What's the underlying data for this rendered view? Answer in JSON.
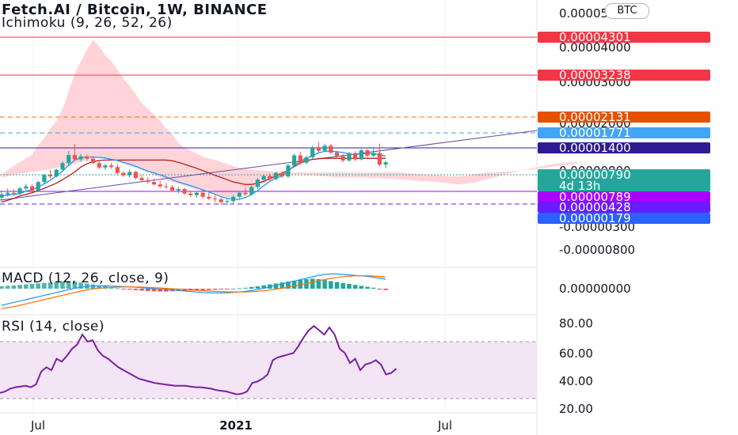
{
  "header": {
    "title": "Fetch.AI / Bitcoin, 1W, BINANCE",
    "indicator": "Ichimoku (9, 26, 52, 26)",
    "currency_badge": "BTC"
  },
  "colors": {
    "up": "#26a69a",
    "down": "#ef5350",
    "cloud": "#ffcdd2",
    "conversion": "#2196f3",
    "base": "#b71c1c",
    "rsi": "#7b1fa2",
    "rsi_band": "#f3e5f5",
    "macd_line": "#2196f3",
    "signal_line": "#ff6d00"
  },
  "chart_data": [
    {
      "type": "candlestick",
      "title": "Fetch.AI / Bitcoin, 1W, BINANCE",
      "timeframe": "1W",
      "y_scale": "log",
      "x_ticks": [
        "Jul",
        "2021",
        "Jul"
      ],
      "y_ticks": [
        "0.00005000",
        "0.00004000",
        "0.00003000",
        "0.00002000",
        "0.00000800",
        "0.00000300",
        "-0.00000300",
        "-0.00000800"
      ],
      "price_labels": [
        {
          "value": "0.00004301",
          "color": "#f23645",
          "style": "solid"
        },
        {
          "value": "0.00003238",
          "color": "#f23645",
          "style": "solid"
        },
        {
          "value": "0.00002131",
          "color": "#e65100",
          "style": "dashed"
        },
        {
          "value": "0.00001771",
          "color": "#42a5f5",
          "style": "dashed"
        },
        {
          "value": "0.00001400",
          "color": "#311b92",
          "style": "solid"
        },
        {
          "value": "0.00000790",
          "color": "#26a69a",
          "style": "dotted",
          "countdown": "4d 13h"
        },
        {
          "value": "0.00000789",
          "color": "#aa00ff",
          "style": "solid"
        },
        {
          "value": "0.00000428",
          "color": "#6a1bff",
          "style": "dashed"
        },
        {
          "value": "0.00000179",
          "color": "#2962ff",
          "style": "solid"
        }
      ],
      "candles": [
        {
          "o": 5.0,
          "h": 5.9,
          "l": 4.6,
          "c": 5.4
        },
        {
          "o": 5.4,
          "h": 6.2,
          "l": 5.1,
          "c": 5.6
        },
        {
          "o": 5.6,
          "h": 6.1,
          "l": 5.2,
          "c": 5.5
        },
        {
          "o": 5.5,
          "h": 6.4,
          "l": 5.3,
          "c": 6.2
        },
        {
          "o": 6.2,
          "h": 6.9,
          "l": 5.9,
          "c": 6.5
        },
        {
          "o": 6.5,
          "h": 6.8,
          "l": 5.6,
          "c": 5.9
        },
        {
          "o": 5.9,
          "h": 7.4,
          "l": 5.7,
          "c": 7.2
        },
        {
          "o": 7.2,
          "h": 8.7,
          "l": 6.9,
          "c": 8.5
        },
        {
          "o": 8.5,
          "h": 9.5,
          "l": 7.8,
          "c": 8.2
        },
        {
          "o": 8.2,
          "h": 9.8,
          "l": 8.0,
          "c": 9.6
        },
        {
          "o": 9.6,
          "h": 11.6,
          "l": 9.2,
          "c": 11.2
        },
        {
          "o": 11.2,
          "h": 14.8,
          "l": 10.5,
          "c": 13.5
        },
        {
          "o": 13.5,
          "h": 17.5,
          "l": 11.8,
          "c": 12.2
        },
        {
          "o": 12.2,
          "h": 13.9,
          "l": 11.6,
          "c": 13.1
        },
        {
          "o": 13.1,
          "h": 13.6,
          "l": 11.7,
          "c": 12.4
        },
        {
          "o": 12.4,
          "h": 13.1,
          "l": 10.9,
          "c": 11.2
        },
        {
          "o": 11.2,
          "h": 11.8,
          "l": 9.7,
          "c": 10.1
        },
        {
          "o": 10.1,
          "h": 11.0,
          "l": 9.5,
          "c": 10.6
        },
        {
          "o": 10.6,
          "h": 11.3,
          "l": 9.8,
          "c": 10.2
        },
        {
          "o": 10.2,
          "h": 10.9,
          "l": 8.6,
          "c": 8.9
        },
        {
          "o": 8.9,
          "h": 9.3,
          "l": 8.1,
          "c": 8.4
        },
        {
          "o": 8.4,
          "h": 9.6,
          "l": 8.0,
          "c": 9.1
        },
        {
          "o": 9.1,
          "h": 9.4,
          "l": 7.6,
          "c": 7.9
        },
        {
          "o": 7.9,
          "h": 8.5,
          "l": 7.3,
          "c": 7.5
        },
        {
          "o": 7.5,
          "h": 8.1,
          "l": 6.9,
          "c": 7.2
        },
        {
          "o": 7.2,
          "h": 7.8,
          "l": 6.6,
          "c": 6.8
        },
        {
          "o": 6.8,
          "h": 7.4,
          "l": 6.2,
          "c": 6.5
        },
        {
          "o": 6.5,
          "h": 7.0,
          "l": 6.1,
          "c": 6.4
        },
        {
          "o": 6.4,
          "h": 6.7,
          "l": 5.7,
          "c": 5.9
        },
        {
          "o": 5.9,
          "h": 6.4,
          "l": 5.5,
          "c": 6.1
        },
        {
          "o": 6.1,
          "h": 6.3,
          "l": 5.3,
          "c": 5.5
        },
        {
          "o": 5.5,
          "h": 5.9,
          "l": 5.1,
          "c": 5.3
        },
        {
          "o": 5.3,
          "h": 5.8,
          "l": 5.0,
          "c": 5.6
        },
        {
          "o": 5.6,
          "h": 5.9,
          "l": 4.9,
          "c": 5.1
        },
        {
          "o": 5.1,
          "h": 5.6,
          "l": 4.7,
          "c": 4.9
        },
        {
          "o": 4.9,
          "h": 5.3,
          "l": 4.5,
          "c": 4.8
        },
        {
          "o": 4.8,
          "h": 5.0,
          "l": 4.3,
          "c": 4.5
        },
        {
          "o": 4.5,
          "h": 4.9,
          "l": 4.2,
          "c": 4.6
        },
        {
          "o": 4.6,
          "h": 5.3,
          "l": 4.4,
          "c": 5.1
        },
        {
          "o": 5.1,
          "h": 5.8,
          "l": 4.9,
          "c": 5.6
        },
        {
          "o": 5.6,
          "h": 6.2,
          "l": 5.2,
          "c": 5.4
        },
        {
          "o": 5.4,
          "h": 6.6,
          "l": 5.2,
          "c": 6.4
        },
        {
          "o": 6.4,
          "h": 7.9,
          "l": 6.1,
          "c": 7.6
        },
        {
          "o": 7.6,
          "h": 8.6,
          "l": 7.1,
          "c": 8.3
        },
        {
          "o": 8.3,
          "h": 8.8,
          "l": 7.4,
          "c": 7.7
        },
        {
          "o": 7.7,
          "h": 9.1,
          "l": 7.5,
          "c": 8.9
        },
        {
          "o": 8.9,
          "h": 9.2,
          "l": 7.9,
          "c": 8.2
        },
        {
          "o": 8.2,
          "h": 10.9,
          "l": 7.9,
          "c": 10.6
        },
        {
          "o": 10.6,
          "h": 14.0,
          "l": 10.2,
          "c": 13.4
        },
        {
          "o": 13.4,
          "h": 14.6,
          "l": 10.8,
          "c": 11.3
        },
        {
          "o": 11.3,
          "h": 13.2,
          "l": 10.9,
          "c": 12.8
        },
        {
          "o": 12.8,
          "h": 16.8,
          "l": 12.4,
          "c": 16.2
        },
        {
          "o": 16.2,
          "h": 18.2,
          "l": 14.4,
          "c": 14.9
        },
        {
          "o": 14.9,
          "h": 17.6,
          "l": 14.6,
          "c": 16.8
        },
        {
          "o": 16.8,
          "h": 17.4,
          "l": 13.8,
          "c": 14.3
        },
        {
          "o": 14.3,
          "h": 14.9,
          "l": 12.6,
          "c": 13.1
        },
        {
          "o": 13.1,
          "h": 13.8,
          "l": 11.4,
          "c": 11.9
        },
        {
          "o": 11.9,
          "h": 14.6,
          "l": 11.6,
          "c": 14.1
        },
        {
          "o": 14.1,
          "h": 14.8,
          "l": 11.7,
          "c": 12.2
        },
        {
          "o": 12.2,
          "h": 15.6,
          "l": 11.9,
          "c": 15.1
        },
        {
          "o": 15.1,
          "h": 15.6,
          "l": 12.8,
          "c": 13.3
        },
        {
          "o": 13.3,
          "h": 16.2,
          "l": 12.9,
          "c": 14.2
        },
        {
          "o": 14.2,
          "h": 17.6,
          "l": 10.4,
          "c": 10.8
        },
        {
          "o": 10.8,
          "h": 11.9,
          "l": 9.9,
          "c": 11.4
        }
      ],
      "cloud_top": [
        8.5,
        9.5,
        10.5,
        11.5,
        12.5,
        13.5,
        17,
        20,
        25,
        30,
        40,
        60,
        90,
        120,
        160,
        200,
        170,
        140,
        120,
        100,
        80,
        68,
        56,
        45,
        40,
        35,
        30,
        25,
        22,
        18,
        16,
        15,
        14,
        13,
        12.5,
        12,
        11.5,
        11,
        10.5,
        10,
        9.8,
        9.6,
        9.5,
        9.4,
        9.3,
        9.2,
        9.1,
        9.0,
        9.0,
        9.0,
        9.0,
        9.0,
        9.0,
        9.0,
        9.0,
        9.0,
        9.0,
        9.0,
        9.0,
        9.0,
        9.0,
        9.0,
        9.0,
        9.0,
        9.0,
        9.0,
        8.9,
        8.8,
        8.7,
        8.6,
        8.5,
        8.5,
        8.4,
        8.3,
        8.2,
        8.2,
        8.3,
        8.5,
        8.7,
        8.9,
        9.0,
        9.0,
        9.1,
        9.2,
        9.3,
        9.4,
        9.5,
        9.6,
        9.8,
        10.0,
        10.2,
        10.4,
        10.6,
        10.8,
        11.0,
        11.2,
        11.4
      ],
      "cloud_bottom": [
        8.0,
        8.2,
        8.5,
        8.7,
        8.9,
        9.1,
        9.3,
        9.5,
        9.8,
        10.0,
        10.3,
        10.6,
        11.0,
        11.5,
        12.0,
        12.5,
        12.5,
        12.4,
        12.0,
        11.6,
        11.0,
        10.5,
        10.0,
        9.5,
        9.0,
        8.5,
        8.0,
        7.6,
        7.2,
        6.9,
        6.6,
        6.3,
        6.0,
        5.8,
        5.6,
        5.4,
        5.2,
        5.0,
        5.0,
        5.2,
        5.6,
        6.0,
        6.5,
        7.0,
        7.5,
        8.0,
        8.3,
        8.5,
        8.6,
        8.6,
        8.5,
        8.4,
        8.3,
        8.2,
        8.1,
        8.0,
        8.0,
        8.0,
        8.0,
        8.0,
        8.0,
        7.9,
        7.9,
        7.8,
        7.8,
        7.7,
        7.6,
        7.5,
        7.4,
        7.3,
        7.3,
        7.2,
        7.1,
        7.0,
        6.9,
        6.8,
        6.9,
        7.0,
        7.2,
        7.5,
        7.8,
        8.1,
        8.4,
        8.7,
        9.0,
        9.3,
        9.6,
        9.9,
        10.2,
        10.5,
        10.8,
        11.1,
        11.3,
        11.4
      ],
      "conversion_line": [
        5.2,
        5.3,
        5.4,
        5.5,
        5.8,
        6.0,
        6.4,
        6.9,
        7.5,
        8.3,
        9.3,
        10.6,
        12.0,
        12.7,
        12.9,
        12.9,
        12.8,
        12.6,
        12.2,
        11.9,
        11.4,
        10.9,
        10.4,
        9.8,
        9.3,
        8.9,
        8.5,
        8.1,
        7.6,
        7.2,
        6.9,
        6.6,
        6.3,
        6.0,
        5.7,
        5.4,
        5.1,
        4.9,
        4.8,
        4.8,
        5.0,
        5.4,
        5.9,
        6.6,
        7.3,
        7.9,
        8.3,
        9.2,
        10.6,
        11.8,
        12.6,
        13.3,
        14.2,
        14.7,
        14.8,
        14.6,
        14.3,
        13.9,
        13.7,
        13.9,
        14.0,
        13.9,
        13.6,
        13.2
      ],
      "base_line": [
        4.5,
        4.7,
        4.9,
        5.2,
        5.4,
        5.6,
        5.9,
        6.2,
        6.6,
        7.0,
        7.6,
        8.3,
        9.1,
        10.2,
        11.0,
        11.6,
        11.9,
        12.0,
        12.0,
        12.0,
        12.0,
        12.0,
        12.0,
        12.0,
        12.0,
        12.0,
        12.0,
        12.0,
        11.8,
        11.4,
        10.9,
        10.4,
        9.9,
        9.4,
        8.9,
        8.4,
        8.0,
        7.6,
        7.2,
        7.0,
        6.8,
        6.8,
        7.0,
        7.3,
        7.8,
        8.3,
        8.8,
        9.5,
        10.3,
        11.2,
        11.8,
        12.2,
        12.4,
        12.5,
        12.5,
        12.5,
        12.5,
        12.5,
        12.5,
        12.5,
        12.5,
        12.5,
        12.5,
        12.5
      ]
    },
    {
      "type": "bar",
      "title": "MACD (12, 26, close, 9)",
      "y_ticks": [
        "0.00000000"
      ],
      "histogram": [
        0.5,
        0.6,
        0.7,
        0.8,
        0.9,
        1.0,
        1.1,
        1.2,
        1.3,
        1.4,
        1.5,
        1.6,
        1.5,
        1.3,
        1.1,
        0.9,
        0.7,
        0.5,
        0.3,
        0.1,
        -0.1,
        -0.2,
        -0.3,
        -0.4,
        -0.5,
        -0.55,
        -0.6,
        -0.6,
        -0.55,
        -0.5,
        -0.45,
        -0.4,
        -0.35,
        -0.3,
        -0.25,
        -0.2,
        -0.15,
        -0.1,
        0.0,
        0.1,
        0.2,
        0.35,
        0.5,
        0.7,
        0.9,
        1.1,
        1.3,
        1.5,
        1.7,
        1.9,
        2.0,
        2.1,
        2.0,
        1.8,
        1.6,
        1.4,
        1.2,
        1.0,
        0.8,
        0.6,
        0.4,
        0.2,
        -0.2,
        -0.3
      ],
      "macd": [
        -3.5,
        -3.2,
        -2.9,
        -2.6,
        -2.3,
        -2.0,
        -1.7,
        -1.4,
        -1.1,
        -0.8,
        -0.5,
        -0.2,
        0.1,
        0.3,
        0.45,
        0.55,
        0.6,
        0.6,
        0.55,
        0.5,
        0.45,
        0.4,
        0.3,
        0.2,
        0.1,
        0.0,
        -0.1,
        -0.2,
        -0.3,
        -0.4,
        -0.5,
        -0.6,
        -0.7,
        -0.8,
        -0.85,
        -0.9,
        -0.9,
        -0.85,
        -0.8,
        -0.7,
        -0.55,
        -0.4,
        -0.2,
        0.1,
        0.4,
        0.7,
        1.0,
        1.3,
        1.6,
        1.9,
        2.2,
        2.5,
        2.8,
        3.0,
        3.1,
        3.1,
        3.0,
        2.9,
        2.8,
        2.7,
        2.6,
        2.4,
        2.2,
        2.0
      ],
      "signal": [
        -4.2,
        -4.0,
        -3.8,
        -3.5,
        -3.2,
        -2.9,
        -2.6,
        -2.3,
        -2.0,
        -1.7,
        -1.4,
        -1.1,
        -0.8,
        -0.5,
        -0.25,
        -0.05,
        0.1,
        0.2,
        0.28,
        0.33,
        0.36,
        0.37,
        0.36,
        0.33,
        0.28,
        0.22,
        0.15,
        0.07,
        -0.01,
        -0.09,
        -0.17,
        -0.25,
        -0.33,
        -0.41,
        -0.48,
        -0.55,
        -0.61,
        -0.66,
        -0.69,
        -0.7,
        -0.68,
        -0.63,
        -0.55,
        -0.43,
        -0.28,
        -0.1,
        0.1,
        0.32,
        0.56,
        0.82,
        1.09,
        1.37,
        1.65,
        1.92,
        2.16,
        2.37,
        2.53,
        2.64,
        2.7,
        2.72,
        2.71,
        2.66,
        2.57,
        2.46
      ]
    },
    {
      "type": "line",
      "title": "RSI (14, close)",
      "y_ticks": [
        80,
        60,
        40,
        20
      ],
      "band": [
        30,
        70
      ],
      "rsi": [
        34,
        35,
        37,
        38,
        38.5,
        39,
        38,
        40,
        49,
        52,
        50,
        58,
        56,
        60,
        65,
        68,
        75,
        70,
        71,
        64,
        60,
        58,
        55,
        52,
        50,
        48,
        46,
        44,
        43,
        42,
        41,
        40.5,
        40,
        39.5,
        39,
        39,
        39,
        38.5,
        38,
        38,
        37.5,
        37,
        36,
        35.5,
        35,
        34,
        33,
        33.5,
        35,
        41,
        42,
        44,
        47,
        57,
        59,
        60,
        61,
        62,
        67,
        73,
        78,
        81,
        78,
        75,
        80,
        75,
        65,
        62,
        55,
        58,
        50,
        54,
        55,
        57,
        54,
        47,
        48,
        51
      ]
    }
  ]
}
